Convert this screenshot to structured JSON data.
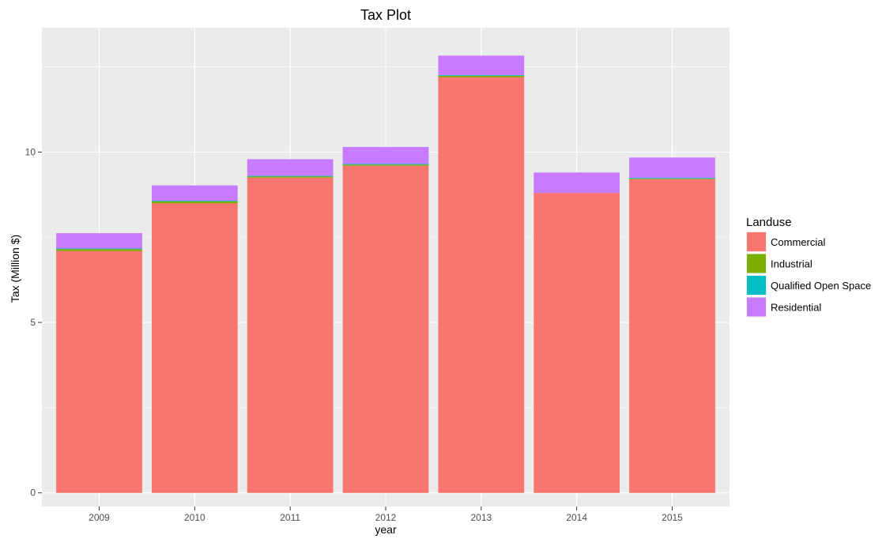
{
  "chart_data": {
    "type": "bar",
    "stacked": true,
    "title": "Tax Plot",
    "xlabel": "year",
    "ylabel": "Tax (Million $)",
    "categories": [
      "2009",
      "2010",
      "2011",
      "2012",
      "2013",
      "2014",
      "2015"
    ],
    "yticks": [
      "0",
      "5",
      "10"
    ],
    "ylim": [
      -0.4,
      13.65
    ],
    "grid": true,
    "legend": {
      "title": "Landuse",
      "placement": "right"
    },
    "series": [
      {
        "name": "Commercial",
        "color": "#F8766D",
        "values": [
          7.1,
          8.5,
          9.25,
          9.6,
          12.2,
          8.8,
          9.2
        ]
      },
      {
        "name": "Industrial",
        "color": "#7CAE00",
        "values": [
          0.05,
          0.05,
          0.03,
          0.03,
          0.04,
          0.0,
          0.02
        ]
      },
      {
        "name": "Qualified Open Space",
        "color": "#00BFC4",
        "values": [
          0.02,
          0.02,
          0.02,
          0.02,
          0.02,
          0.0,
          0.02
        ]
      },
      {
        "name": "Residential",
        "color": "#C77CFF",
        "values": [
          0.45,
          0.45,
          0.49,
          0.5,
          0.57,
          0.6,
          0.6
        ]
      }
    ]
  }
}
